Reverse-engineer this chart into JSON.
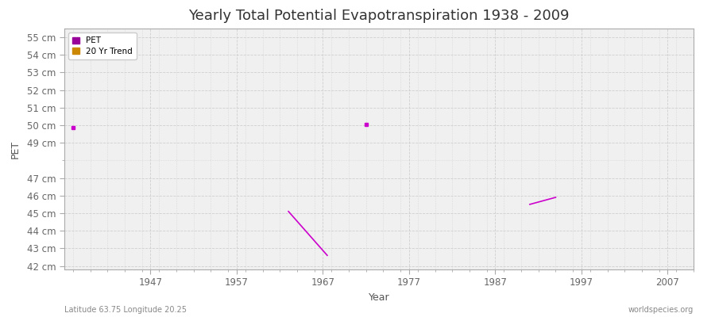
{
  "title": "Yearly Total Potential Evapotranspiration 1938 - 2009",
  "xlabel": "Year",
  "ylabel": "PET",
  "xlim": [
    1937,
    2010
  ],
  "ylim": [
    41.8,
    55.5
  ],
  "ytick_values": [
    42,
    43,
    44,
    45,
    46,
    47,
    49,
    50,
    51,
    52,
    53,
    54,
    55
  ],
  "ytick_labels": [
    "42 cm",
    "43 cm",
    "44 cm",
    "45 cm",
    "46 cm",
    "47 cm",
    "49 cm",
    "50 cm",
    "51 cm",
    "52 cm",
    "53 cm",
    "54 cm",
    "55 cm"
  ],
  "xtick_values": [
    1947,
    1957,
    1967,
    1977,
    1987,
    1997,
    2007
  ],
  "pet_points_x": [
    1938,
    1972
  ],
  "pet_points_y": [
    49.85,
    50.05
  ],
  "trend_segments": [
    {
      "x": [
        1963,
        1967.5
      ],
      "y": [
        45.1,
        42.6
      ]
    },
    {
      "x": [
        1991,
        1994
      ],
      "y": [
        45.5,
        45.9
      ]
    }
  ],
  "pet_color": "#cc00cc",
  "trend_color": "#cc00cc",
  "legend_pet_color": "#990099",
  "legend_trend_color": "#cc8800",
  "bg_color": "#ffffff",
  "plot_bg_color": "#f0f0f0",
  "grid_color": "#cccccc",
  "title_fontsize": 13,
  "label_fontsize": 9,
  "tick_fontsize": 8.5,
  "bottom_left_text": "Latitude 63.75 Longitude 20.25",
  "bottom_right_text": "worldspecies.org"
}
